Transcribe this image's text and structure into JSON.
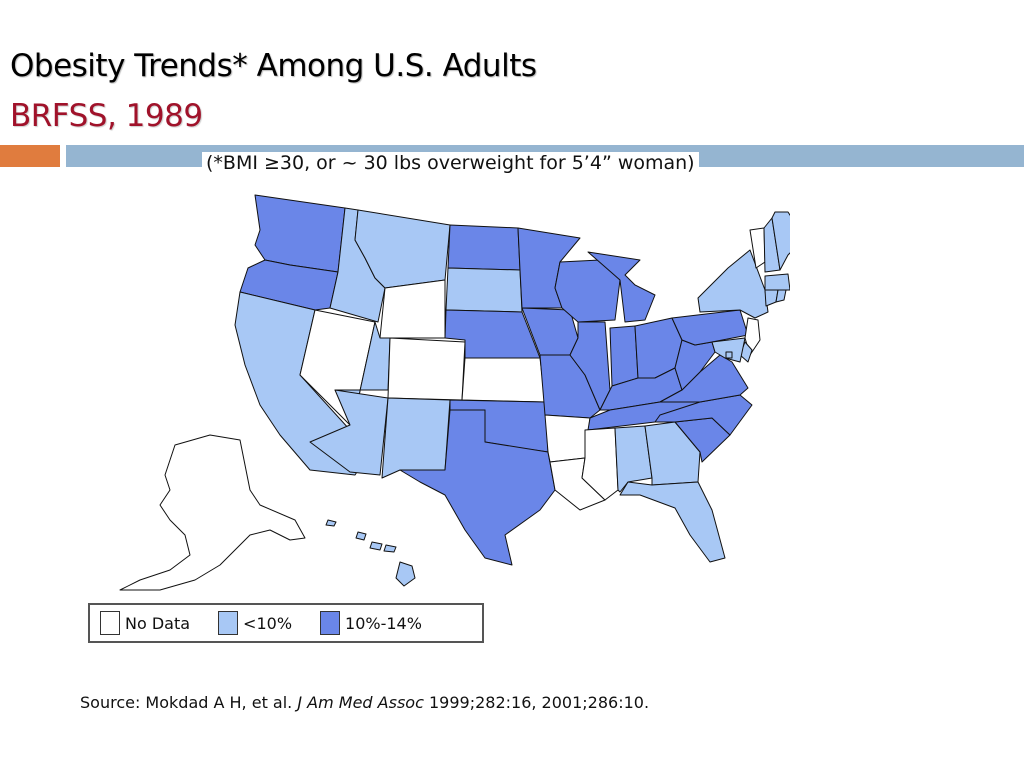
{
  "slide": {
    "title": "Obesity Trends* Among U.S. Adults",
    "subtitle_title": "BRFSS, 1989",
    "note": "(*BMI ≥30, or ~ 30 lbs overweight for 5’4” woman)"
  },
  "colors": {
    "no_data": "#ffffff",
    "lt10": "#a8c8f5",
    "10to14": "#6a86e8",
    "title_red": "#a0122a",
    "bar_orange": "#e07c3e",
    "bar_blue": "#95b5d1"
  },
  "legend": [
    {
      "label": "No Data",
      "category": "no_data"
    },
    {
      "label": "<10%",
      "category": "lt10"
    },
    {
      "label": "10%-14%",
      "category": "10to14"
    }
  ],
  "source": {
    "prefix": "Source: Mokdad A H, et al.",
    "journal": "J Am Med Assoc",
    "suffix": "1999;282:16, 2001;286:10."
  },
  "states": {
    "WA": "10to14",
    "OR": "10to14",
    "CA": "lt10",
    "NV": "no_data",
    "ID": "lt10",
    "MT": "lt10",
    "WY": "no_data",
    "UT": "lt10",
    "CO": "no_data",
    "AZ": "lt10",
    "NM": "lt10",
    "ND": "10to14",
    "SD": "lt10",
    "NE": "10to14",
    "KS": "no_data",
    "OK": "10to14",
    "TX": "10to14",
    "MN": "10to14",
    "IA": "10to14",
    "MO": "10to14",
    "AR": "no_data",
    "LA": "no_data",
    "WI": "10to14",
    "IL": "10to14",
    "MI": "10to14",
    "IN": "10to14",
    "OH": "10to14",
    "KY": "10to14",
    "TN": "10to14",
    "MS": "no_data",
    "AL": "lt10",
    "GA": "lt10",
    "FL": "lt10",
    "SC": "10to14",
    "NC": "10to14",
    "VA": "10to14",
    "WV": "10to14",
    "PA": "10to14",
    "NY": "lt10",
    "VT": "no_data",
    "NH": "lt10",
    "ME": "lt10",
    "MA": "lt10",
    "CT": "lt10",
    "RI": "lt10",
    "NJ": "no_data",
    "DE": "lt10",
    "MD": "lt10",
    "DC": "lt10",
    "AK": "no_data",
    "HI": "lt10"
  }
}
